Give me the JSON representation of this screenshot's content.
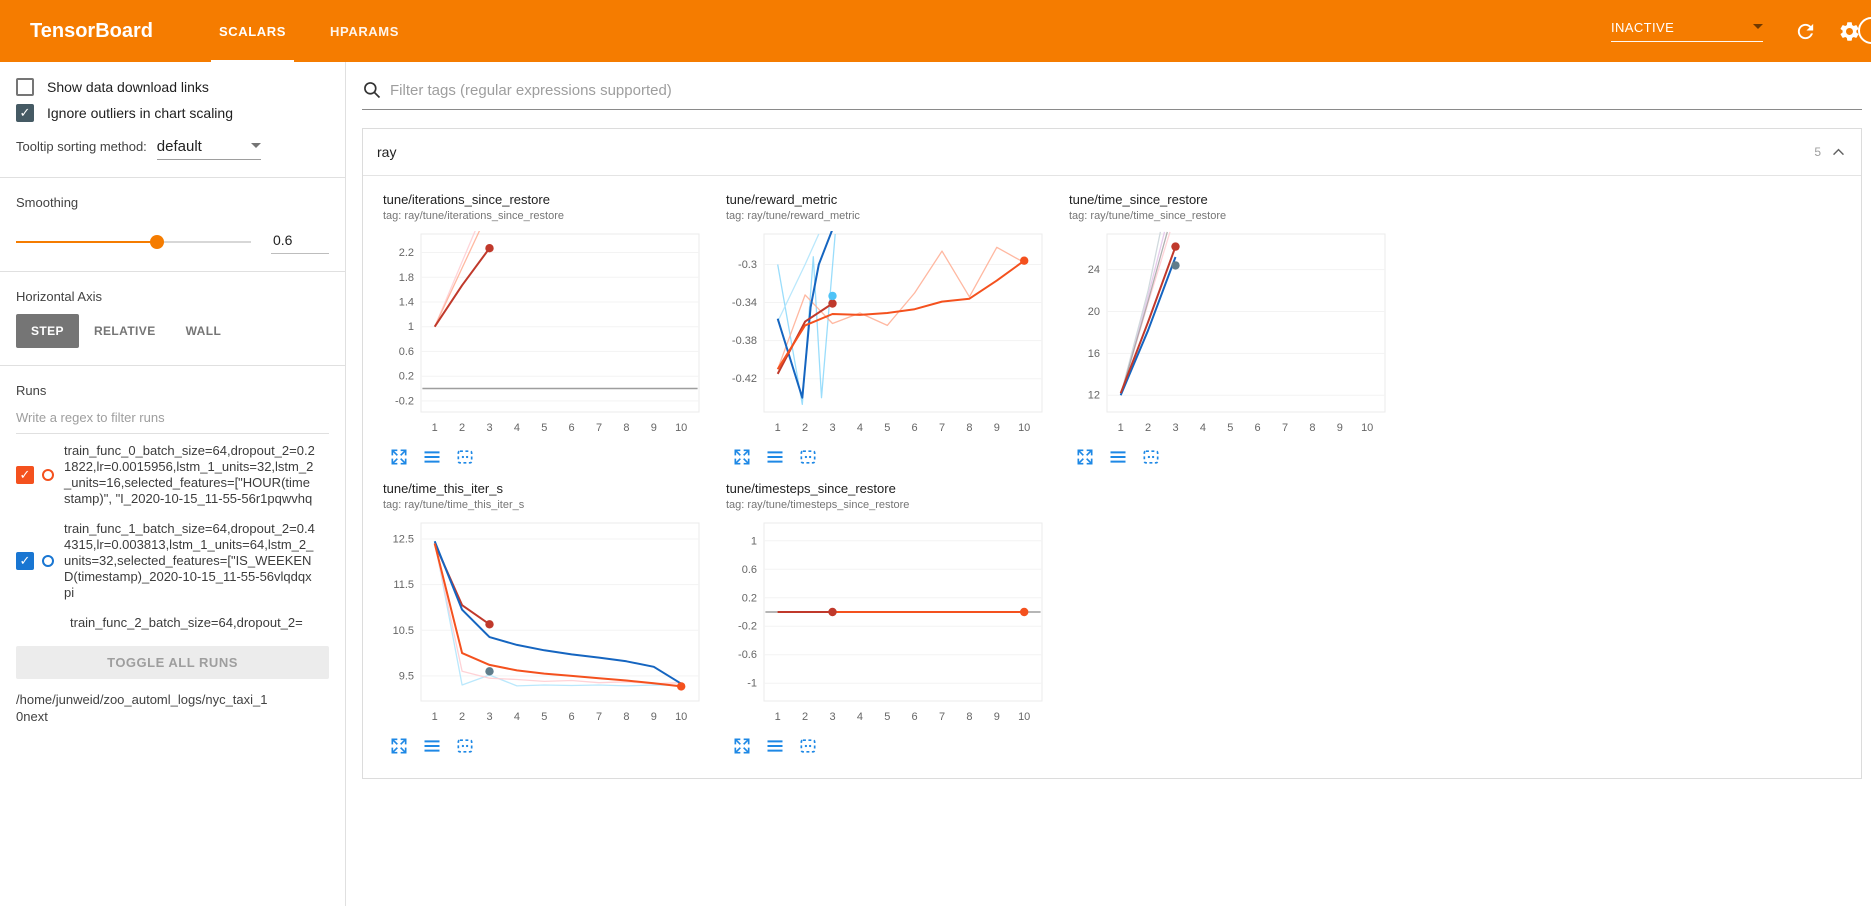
{
  "header": {
    "title": "TensorBoard",
    "tabs": [
      "SCALARS",
      "HPARAMS"
    ],
    "status": "INACTIVE",
    "accent_color": "#f57c00"
  },
  "icons": {
    "checkmark": "✓"
  },
  "sidebar": {
    "toggles": [
      {
        "label": "Show data download links",
        "checked": false
      },
      {
        "label": "Ignore outliers in chart scaling",
        "checked": true
      }
    ],
    "tooltip_sort": {
      "label": "Tooltip sorting method:",
      "value": "default"
    },
    "smoothing": {
      "label": "Smoothing",
      "value": "0.6",
      "percent": 60
    },
    "haxis": {
      "label": "Horizontal Axis",
      "options": [
        "STEP",
        "RELATIVE",
        "WALL"
      ],
      "selected": "STEP"
    },
    "runs": {
      "label": "Runs",
      "placeholder": "Write a regex to filter runs",
      "items": [
        {
          "name": "train_func_0_batch_size=64,dropout_2=0.21822,lr=0.0015956,lstm_1_units=32,lstm_2_units=16,selected_features=[\"HOUR(timestamp)\", \"I_2020-10-15_11-55-56r1pqwvhq",
          "checked": true,
          "color": "#f4511e"
        },
        {
          "name": "train_func_1_batch_size=64,dropout_2=0.44315,lr=0.003813,lstm_1_units=64,lstm_2_units=32,selected_features=[\"IS_WEEKEND(timestamp)_2020-10-15_11-55-56vlqdqxpi",
          "checked": true,
          "color": "#1976d2"
        },
        {
          "name": "train_func_2_batch_size=64,dropout_2=",
          "partial": true
        }
      ],
      "toggle_all": "TOGGLE ALL RUNS",
      "path": "/home/junweid/zoo_automl_logs/nyc_taxi_10next"
    }
  },
  "main": {
    "filter_placeholder": "Filter tags (regular expressions supported)",
    "group": {
      "name": "ray",
      "count": "5"
    }
  },
  "chart_data": [
    {
      "type": "line",
      "title": "tune/iterations_since_restore",
      "tag": "tag: ray/tune/iterations_since_restore",
      "xticks": [
        1,
        2,
        3,
        4,
        5,
        6,
        7,
        8,
        9,
        10
      ],
      "xlim": [
        0.5,
        10.65
      ],
      "yticks": [
        -0.2,
        0.2,
        0.6,
        1,
        1.4,
        1.8,
        2.2
      ],
      "ylim": [
        -0.38,
        2.5
      ],
      "series": [
        {
          "name": "run0 original",
          "color": "#ffcdd2",
          "opacity": 0.85,
          "width": 1.3,
          "x": [
            1,
            2,
            3
          ],
          "y": [
            1,
            2.05,
            3.1
          ]
        },
        {
          "name": "run2 original",
          "color": "#ffab91",
          "opacity": 0.85,
          "width": 1.3,
          "x": [
            1,
            2,
            3
          ],
          "y": [
            1,
            1.95,
            2.9
          ]
        },
        {
          "name": "gray run",
          "color": "#9e9e9e",
          "width": 1.5,
          "x": [
            0.55,
            10.6
          ],
          "y": [
            0,
            0
          ]
        },
        {
          "name": "run0 smoothed",
          "color": "#c0392b",
          "width": 2,
          "x": [
            1,
            2,
            3
          ],
          "y": [
            1,
            1.67,
            2.27
          ],
          "dots": [
            [
              3,
              2.27
            ]
          ]
        }
      ]
    },
    {
      "type": "line",
      "title": "tune/reward_metric",
      "tag": "tag: ray/tune/reward_metric",
      "xticks": [
        1,
        2,
        3,
        4,
        5,
        6,
        7,
        8,
        9,
        10
      ],
      "xlim": [
        0.5,
        10.65
      ],
      "yticks": [
        -0.42,
        -0.38,
        -0.34,
        -0.3
      ],
      "ylim": [
        -0.455,
        -0.268
      ],
      "series": [
        {
          "name": "run1 original",
          "color": "#81d4fa",
          "opacity": 0.8,
          "width": 1.3,
          "x": [
            1,
            1.9,
            2.3,
            2.6,
            3.1
          ],
          "y": [
            -0.3,
            -0.447,
            -0.292,
            -0.44,
            -0.268
          ]
        },
        {
          "name": "run1 original b",
          "color": "#b3e5fc",
          "opacity": 0.9,
          "width": 1.3,
          "x": [
            1,
            2,
            2.5
          ],
          "y": [
            -0.36,
            -0.3,
            -0.268
          ]
        },
        {
          "name": "run0 original",
          "color": "#ffab91",
          "opacity": 0.85,
          "width": 1.3,
          "x": [
            1,
            2,
            3,
            4,
            5,
            6,
            7,
            8,
            9,
            10
          ],
          "y": [
            -0.41,
            -0.332,
            -0.362,
            -0.351,
            -0.364,
            -0.33,
            -0.286,
            -0.334,
            -0.282,
            -0.298
          ]
        },
        {
          "name": "run1 smoothed",
          "color": "#1565c0",
          "width": 2,
          "x": [
            1,
            1.9,
            2.2,
            2.5,
            3
          ],
          "y": [
            -0.357,
            -0.44,
            -0.345,
            -0.3,
            -0.263
          ]
        },
        {
          "name": "run2 smoothed",
          "color": "#c0392b",
          "width": 2,
          "x": [
            1,
            2,
            3
          ],
          "y": [
            -0.415,
            -0.36,
            -0.341
          ],
          "dots": [
            [
              3,
              -0.341
            ]
          ]
        },
        {
          "name": "run0 smoothed",
          "color": "#f4511e",
          "width": 2,
          "x": [
            1,
            2,
            3,
            4,
            5,
            6,
            7,
            8,
            9,
            10
          ],
          "y": [
            -0.41,
            -0.364,
            -0.352,
            -0.353,
            -0.351,
            -0.347,
            -0.339,
            -0.336,
            -0.317,
            -0.296
          ],
          "dots": [
            [
              10,
              -0.296
            ]
          ]
        },
        {
          "name": "run1 marker",
          "color": "#4fc3f7",
          "x": [
            3
          ],
          "y": [
            -0.333
          ],
          "dots": [
            [
              3,
              -0.333
            ]
          ]
        }
      ]
    },
    {
      "type": "line",
      "title": "tune/time_since_restore",
      "tag": "tag: ray/tune/time_since_restore",
      "xticks": [
        1,
        2,
        3,
        4,
        5,
        6,
        7,
        8,
        9,
        10
      ],
      "xlim": [
        0.5,
        10.65
      ],
      "yticks": [
        12,
        16,
        20,
        24
      ],
      "ylim": [
        10.4,
        27.4
      ],
      "series": [
        {
          "name": "faded a",
          "color": "#ffcdd2",
          "opacity": 0.85,
          "width": 1.3,
          "x": [
            1,
            2,
            2.8
          ],
          "y": [
            12,
            20.8,
            27.6
          ]
        },
        {
          "name": "faded b",
          "color": "#e1bee7",
          "opacity": 0.8,
          "width": 1.3,
          "x": [
            1,
            2,
            2.6
          ],
          "y": [
            12,
            21.5,
            27.6
          ]
        },
        {
          "name": "faded c",
          "color": "#cfd8dc",
          "opacity": 0.95,
          "width": 1.3,
          "x": [
            1,
            2,
            2.45
          ],
          "y": [
            12,
            22,
            27.6
          ]
        },
        {
          "name": "faded d",
          "color": "#9e9e9e",
          "opacity": 0.8,
          "width": 1.3,
          "x": [
            1,
            2,
            2.7
          ],
          "y": [
            12,
            21,
            27.6
          ]
        },
        {
          "name": "run1 smoothed",
          "color": "#1565c0",
          "width": 2,
          "x": [
            1,
            2,
            3
          ],
          "y": [
            12,
            18.2,
            25.2
          ]
        },
        {
          "name": "run2 smoothed",
          "color": "#c0392b",
          "width": 2,
          "x": [
            1,
            2,
            3
          ],
          "y": [
            12.2,
            19,
            26.2
          ],
          "dots": [
            [
              3,
              26.2
            ]
          ]
        },
        {
          "name": "run1 marker",
          "color": "#607d8b",
          "x": [
            3
          ],
          "y": [
            24.4
          ],
          "dots": [
            [
              3,
              24.4
            ]
          ]
        }
      ]
    },
    {
      "type": "line",
      "title": "tune/time_this_iter_s",
      "tag": "tag: ray/tune/time_this_iter_s",
      "xticks": [
        1,
        2,
        3,
        4,
        5,
        6,
        7,
        8,
        9,
        10
      ],
      "xlim": [
        0.5,
        10.65
      ],
      "yticks": [
        9.5,
        10.5,
        11.5,
        12.5
      ],
      "ylim": [
        8.95,
        12.85
      ],
      "series": [
        {
          "name": "run1 original",
          "color": "#b3e5fc",
          "opacity": 0.9,
          "width": 1.3,
          "x": [
            1,
            2,
            3,
            4,
            5,
            6,
            7,
            8,
            9,
            10
          ],
          "y": [
            12.45,
            9.3,
            9.52,
            9.28,
            9.3,
            9.29,
            9.3,
            9.28,
            9.3,
            9.29
          ]
        },
        {
          "name": "run0 original",
          "color": "#ffcdd2",
          "opacity": 0.9,
          "width": 1.3,
          "x": [
            1,
            2,
            3,
            4,
            5,
            6,
            7,
            8,
            9,
            10
          ],
          "y": [
            12.4,
            9.6,
            9.45,
            9.42,
            9.38,
            9.4,
            9.35,
            9.37,
            9.33,
            9.35
          ]
        },
        {
          "name": "run2 smoothed",
          "color": "#c0392b",
          "width": 2,
          "x": [
            1,
            2,
            3
          ],
          "y": [
            12.4,
            11.05,
            10.63
          ],
          "dots": [
            [
              3,
              10.63
            ]
          ]
        },
        {
          "name": "run1 smoothed",
          "color": "#1565c0",
          "width": 2,
          "x": [
            1,
            2,
            3,
            4,
            5,
            6,
            7,
            8,
            9,
            10
          ],
          "y": [
            12.45,
            10.95,
            10.35,
            10.18,
            10.06,
            9.97,
            9.9,
            9.82,
            9.7,
            9.33
          ]
        },
        {
          "name": "run0 smoothed",
          "color": "#f4511e",
          "width": 2,
          "x": [
            1,
            2,
            3,
            4,
            5,
            6,
            7,
            8,
            9,
            10
          ],
          "y": [
            12.4,
            10.0,
            9.74,
            9.62,
            9.55,
            9.5,
            9.45,
            9.4,
            9.34,
            9.27
          ],
          "dots": [
            [
              10,
              9.27
            ]
          ]
        },
        {
          "name": "run1 marker",
          "color": "#607d8b",
          "x": [
            3
          ],
          "y": [
            9.6
          ],
          "dots": [
            [
              3,
              9.6
            ]
          ]
        }
      ]
    },
    {
      "type": "line",
      "title": "tune/timesteps_since_restore",
      "tag": "tag: ray/tune/timesteps_since_restore",
      "xticks": [
        1,
        2,
        3,
        4,
        5,
        6,
        7,
        8,
        9,
        10
      ],
      "xlim": [
        0.5,
        10.65
      ],
      "yticks": [
        -1,
        -0.6,
        -0.2,
        0.2,
        0.6,
        1
      ],
      "ylim": [
        -1.25,
        1.25
      ],
      "series": [
        {
          "name": "gray run",
          "color": "#9e9e9e",
          "width": 1.4,
          "x": [
            0.55,
            10.6
          ],
          "y": [
            0,
            0
          ]
        },
        {
          "name": "run0 smoothed",
          "color": "#f4511e",
          "width": 2,
          "x": [
            1,
            2,
            3,
            4,
            5,
            6,
            7,
            8,
            9,
            10
          ],
          "y": [
            0,
            0,
            0,
            0,
            0,
            0,
            0,
            0,
            0,
            0
          ],
          "dots": [
            [
              10,
              0
            ]
          ]
        },
        {
          "name": "run2 smoothed",
          "color": "#c0392b",
          "width": 2,
          "x": [
            1,
            2,
            3
          ],
          "y": [
            0,
            0,
            0
          ],
          "dots": [
            [
              3,
              0
            ]
          ]
        }
      ]
    }
  ]
}
